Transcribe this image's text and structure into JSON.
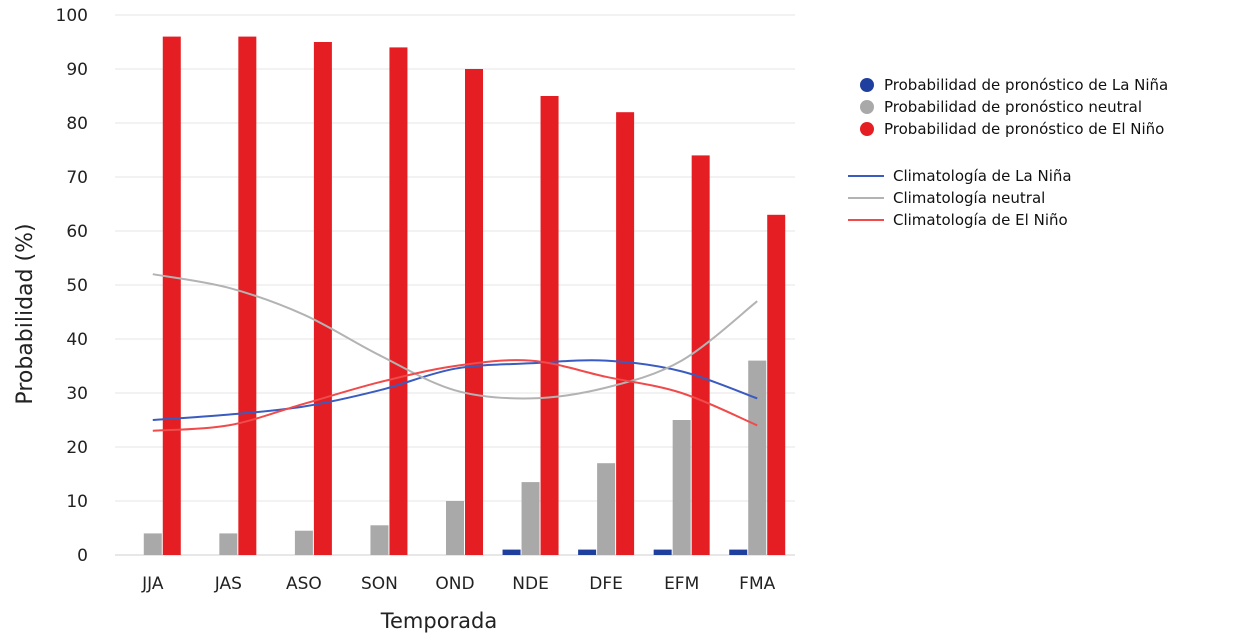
{
  "chart_data": {
    "type": "bar",
    "title": "",
    "xlabel": "Temporada",
    "ylabel": "Probabilidad (%)",
    "ylim": [
      0,
      100
    ],
    "yticks": [
      0,
      10,
      20,
      30,
      40,
      50,
      60,
      70,
      80,
      90,
      100
    ],
    "grid": true,
    "legend_position": "right",
    "categories": [
      "JJA",
      "JAS",
      "ASO",
      "SON",
      "OND",
      "NDE",
      "DFE",
      "EFM",
      "FMA"
    ],
    "series": [
      {
        "name": "Probabilidad de pronóstico de La Niña",
        "kind": "bar",
        "color": "#1f3f9e",
        "values": [
          0,
          0,
          0,
          0,
          0,
          1,
          1,
          1,
          1
        ]
      },
      {
        "name": "Probabilidad de pronóstico neutral",
        "kind": "bar",
        "color": "#a9a9a9",
        "values": [
          4,
          4,
          4.5,
          5.5,
          10,
          13.5,
          17,
          25,
          36
        ]
      },
      {
        "name": "Probabilidad de pronóstico de El Niño",
        "kind": "bar",
        "color": "#e41e22",
        "values": [
          96,
          96,
          95,
          94,
          90,
          85,
          82,
          74,
          63
        ]
      },
      {
        "name": "Climatología de La Niña",
        "kind": "line",
        "color": "#3a5bbf",
        "values": [
          25,
          26,
          27.5,
          30.5,
          34.5,
          35.5,
          36,
          34,
          29
        ]
      },
      {
        "name": "Climatología neutral",
        "kind": "line",
        "color": "#b3b3b3",
        "values": [
          52,
          49.5,
          44.5,
          37,
          30.5,
          29,
          31,
          36,
          47
        ]
      },
      {
        "name": "Climatología de El Niño",
        "kind": "line",
        "color": "#f04a4a",
        "values": [
          23,
          24,
          28,
          32,
          35,
          36,
          33,
          30,
          24
        ]
      }
    ]
  }
}
